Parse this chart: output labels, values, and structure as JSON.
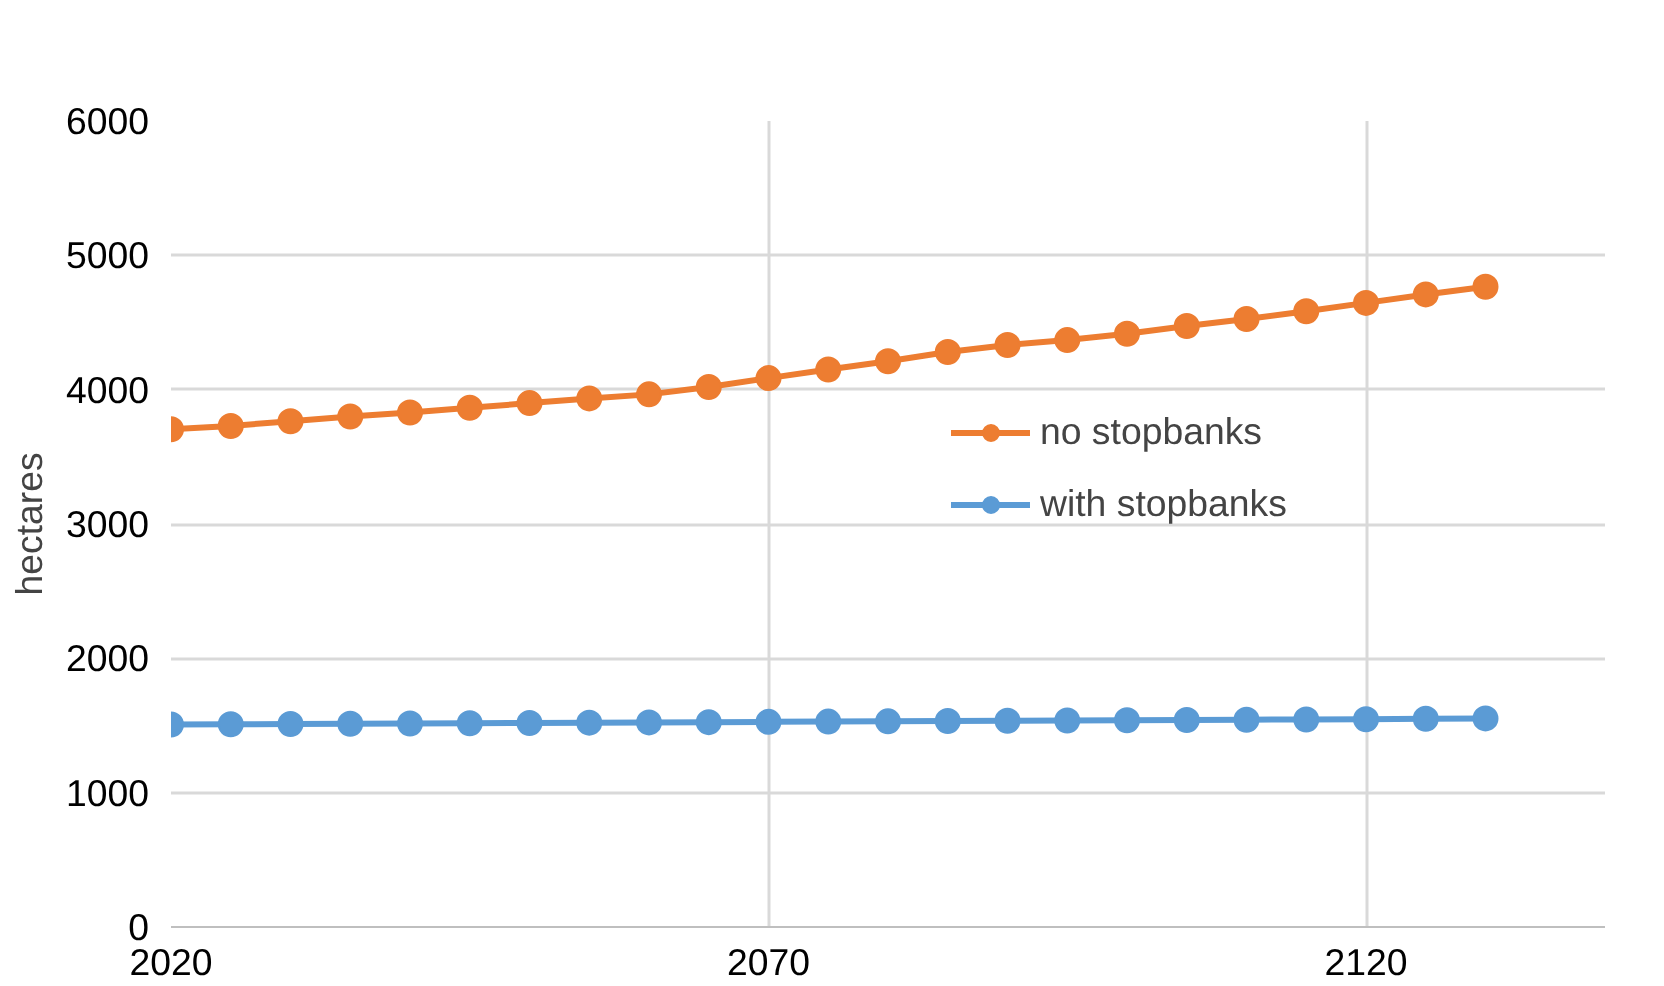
{
  "chart_data": {
    "type": "line",
    "ylabel": "hectares",
    "x": [
      2020,
      2025,
      2030,
      2035,
      2040,
      2045,
      2050,
      2055,
      2060,
      2065,
      2070,
      2075,
      2080,
      2085,
      2090,
      2095,
      2100,
      2105,
      2110,
      2115,
      2120,
      2125,
      2130
    ],
    "series": [
      {
        "name": "no stopbanks",
        "color": "#ed7d31",
        "values": [
          3705,
          3730,
          3765,
          3800,
          3830,
          3865,
          3900,
          3935,
          3965,
          4020,
          4086,
          4150,
          4212,
          4280,
          4333,
          4369,
          4416,
          4474,
          4526,
          4584,
          4646,
          4709,
          4766
        ]
      },
      {
        "name": "with stopbanks",
        "color": "#5b9bd5",
        "values": [
          1507,
          1509,
          1511,
          1513,
          1515,
          1517,
          1519,
          1521,
          1523,
          1525,
          1527,
          1529,
          1531,
          1533,
          1535,
          1537,
          1539,
          1541,
          1543,
          1545,
          1547,
          1550,
          1553
        ]
      }
    ],
    "xlim": [
      2020,
      2140
    ],
    "xticks": [
      2020,
      2070,
      2120
    ],
    "ylim": [
      0,
      6000
    ],
    "yticks": [
      0,
      1000,
      2000,
      3000,
      4000,
      5000,
      6000
    ],
    "grid": true,
    "legend": "right",
    "marker": "circle",
    "line_style": "solid"
  }
}
